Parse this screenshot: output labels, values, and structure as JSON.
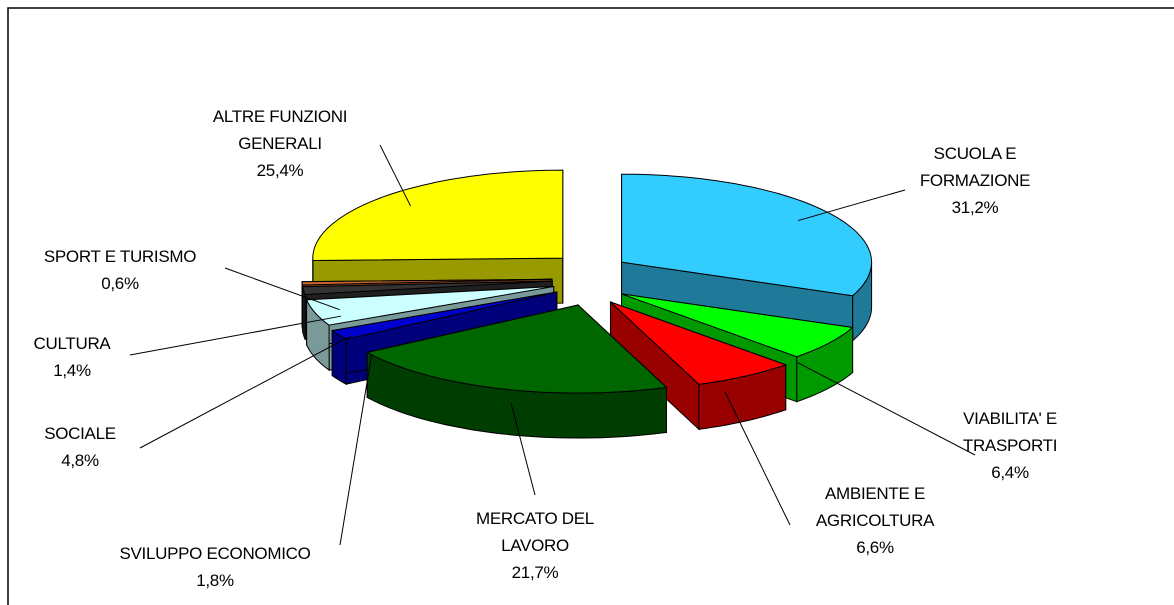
{
  "chart_data": {
    "type": "pie3d",
    "categories": [
      "SCUOLA E FORMAZIONE",
      "VIABILITA' E TRASPORTI",
      "AMBIENTE E AGRICOLTURA",
      "MERCATO DEL LAVORO",
      "SVILUPPO ECONOMICO",
      "SOCIALE",
      "CULTURA",
      "SPORT E TURISMO",
      "ALTRE FUNZIONI GENERALI"
    ],
    "values": [
      31.2,
      6.4,
      6.6,
      21.7,
      1.8,
      4.8,
      1.4,
      0.6,
      25.4
    ],
    "value_labels": [
      "31,2%",
      "6,4%",
      "6,6%",
      "21,7%",
      "1,8%",
      "4,8%",
      "1,4%",
      "0,6%",
      "25,4%"
    ],
    "colors": [
      "#33ccff",
      "#00ff00",
      "#ff0000",
      "#006600",
      "#0000cc",
      "#ccffff",
      "#333333",
      "#cc6633",
      "#ffff00"
    ]
  }
}
